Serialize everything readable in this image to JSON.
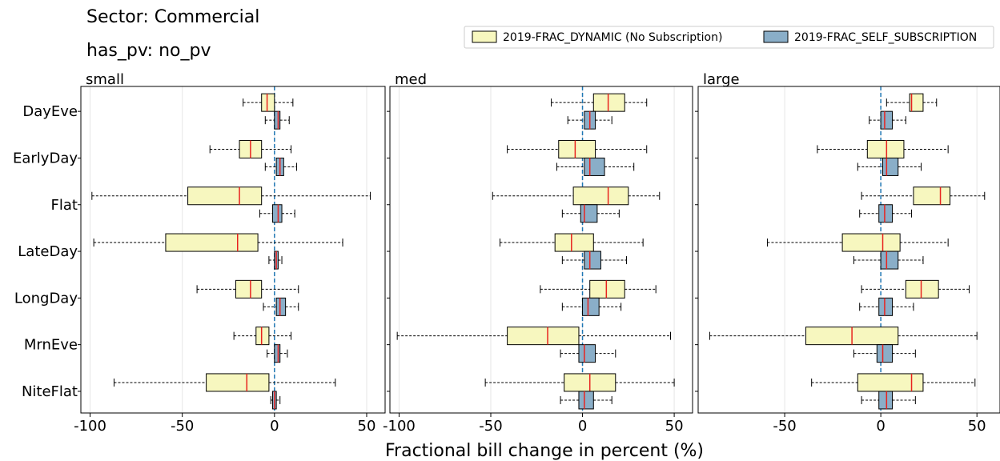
{
  "title_lines": [
    "Sector: Commercial",
    "has_pv: no_pv"
  ],
  "xlabel": "Fractional bill change in percent (%)",
  "legend": [
    {
      "label": "2019-FRAC_DYNAMIC (No Subscription)",
      "color": "#f7f7bf"
    },
    {
      "label": "2019-FRAC_SELF_SUBSCRIPTION",
      "color": "#8aaec8"
    }
  ],
  "colors": {
    "median": "#e8231f",
    "zero_line": "#1f77b4",
    "grid": "#e6e6e6",
    "edge": "#000000"
  },
  "categories": [
    "DayEve",
    "EarlyDay",
    "Flat",
    "LateDay",
    "LongDay",
    "MrnEve",
    "NiteFlat"
  ],
  "chart_data": [
    {
      "type": "boxplot",
      "title": "small",
      "xlim": [
        -105,
        60
      ],
      "xticks": [
        -100,
        -50,
        0,
        50
      ],
      "series": [
        {
          "name": "2019-FRAC_DYNAMIC (No Subscription)",
          "boxes": [
            {
              "category": "DayEve",
              "whislo": -17,
              "q1": -7,
              "med": -4,
              "q3": 0,
              "whishi": 10
            },
            {
              "category": "EarlyDay",
              "whislo": -35,
              "q1": -19,
              "med": -13,
              "q3": -7,
              "whishi": 9
            },
            {
              "category": "Flat",
              "whislo": -99,
              "q1": -47,
              "med": -19,
              "q3": -7,
              "whishi": 52
            },
            {
              "category": "LateDay",
              "whislo": -98,
              "q1": -59,
              "med": -20,
              "q3": -9,
              "whishi": 37
            },
            {
              "category": "LongDay",
              "whislo": -42,
              "q1": -21,
              "med": -13,
              "q3": -7,
              "whishi": 13
            },
            {
              "category": "MrnEve",
              "whislo": -22,
              "q1": -10,
              "med": -7,
              "q3": -3,
              "whishi": 9
            },
            {
              "category": "NiteFlat",
              "whislo": -87,
              "q1": -37,
              "med": -15,
              "q3": -3,
              "whishi": 33
            }
          ]
        },
        {
          "name": "2019-FRAC_SELF_SUBSCRIPTION",
          "boxes": [
            {
              "category": "DayEve",
              "whislo": -5,
              "q1": 0,
              "med": 2,
              "q3": 3,
              "whishi": 8
            },
            {
              "category": "EarlyDay",
              "whislo": -5,
              "q1": 1,
              "med": 3,
              "q3": 5,
              "whishi": 12
            },
            {
              "category": "Flat",
              "whislo": -8,
              "q1": -1,
              "med": 2,
              "q3": 4,
              "whishi": 11
            },
            {
              "category": "LateDay",
              "whislo": -3,
              "q1": 0,
              "med": 1,
              "q3": 2,
              "whishi": 4
            },
            {
              "category": "LongDay",
              "whislo": -6,
              "q1": 1,
              "med": 3,
              "q3": 6,
              "whishi": 13
            },
            {
              "category": "MrnEve",
              "whislo": -4,
              "q1": 0,
              "med": 2,
              "q3": 3,
              "whishi": 7
            },
            {
              "category": "NiteFlat",
              "whislo": -2,
              "q1": -1,
              "med": 0,
              "q3": 1,
              "whishi": 3
            }
          ]
        }
      ]
    },
    {
      "type": "boxplot",
      "title": "med",
      "xlim": [
        -105,
        60
      ],
      "xticks": [
        -100,
        -50,
        0,
        50
      ],
      "series": [
        {
          "name": "2019-FRAC_DYNAMIC (No Subscription)",
          "boxes": [
            {
              "category": "DayEve",
              "whislo": -17,
              "q1": 6,
              "med": 14,
              "q3": 23,
              "whishi": 35
            },
            {
              "category": "EarlyDay",
              "whislo": -41,
              "q1": -13,
              "med": -4,
              "q3": 7,
              "whishi": 35
            },
            {
              "category": "Flat",
              "whislo": -49,
              "q1": -5,
              "med": 14,
              "q3": 25,
              "whishi": 42
            },
            {
              "category": "LateDay",
              "whislo": -45,
              "q1": -15,
              "med": -6,
              "q3": 6,
              "whishi": 33
            },
            {
              "category": "LongDay",
              "whislo": -23,
              "q1": 4,
              "med": 13,
              "q3": 23,
              "whishi": 40
            },
            {
              "category": "MrnEve",
              "whislo": -101,
              "q1": -41,
              "med": -19,
              "q3": -2,
              "whishi": 48
            },
            {
              "category": "NiteFlat",
              "whislo": -53,
              "q1": -10,
              "med": 4,
              "q3": 18,
              "whishi": 50
            }
          ]
        },
        {
          "name": "2019-FRAC_SELF_SUBSCRIPTION",
          "boxes": [
            {
              "category": "DayEve",
              "whislo": -8,
              "q1": 1,
              "med": 4,
              "q3": 7,
              "whishi": 16
            },
            {
              "category": "EarlyDay",
              "whislo": -14,
              "q1": 1,
              "med": 4,
              "q3": 12,
              "whishi": 28
            },
            {
              "category": "Flat",
              "whislo": -11,
              "q1": -1,
              "med": 1,
              "q3": 8,
              "whishi": 20
            },
            {
              "category": "LateDay",
              "whislo": -11,
              "q1": 1,
              "med": 4,
              "q3": 10,
              "whishi": 24
            },
            {
              "category": "LongDay",
              "whislo": -11,
              "q1": 0,
              "med": 3,
              "q3": 9,
              "whishi": 21
            },
            {
              "category": "MrnEve",
              "whislo": -12,
              "q1": -2,
              "med": 1,
              "q3": 7,
              "whishi": 18
            },
            {
              "category": "NiteFlat",
              "whislo": -12,
              "q1": -2,
              "med": 1,
              "q3": 6,
              "whishi": 16
            }
          ]
        }
      ]
    },
    {
      "type": "boxplot",
      "title": "large",
      "xlim": [
        -95,
        62
      ],
      "xticks": [
        -50,
        0,
        50
      ],
      "series": [
        {
          "name": "2019-FRAC_DYNAMIC (No Subscription)",
          "boxes": [
            {
              "category": "DayEve",
              "whislo": 3,
              "q1": 15,
              "med": 16,
              "q3": 22,
              "whishi": 29
            },
            {
              "category": "EarlyDay",
              "whislo": -33,
              "q1": -7,
              "med": 3,
              "q3": 12,
              "whishi": 35
            },
            {
              "category": "Flat",
              "whislo": -10,
              "q1": 17,
              "med": 31,
              "q3": 36,
              "whishi": 54
            },
            {
              "category": "LateDay",
              "whislo": -59,
              "q1": -20,
              "med": 1,
              "q3": 10,
              "whishi": 35
            },
            {
              "category": "LongDay",
              "whislo": -10,
              "q1": 13,
              "med": 21,
              "q3": 30,
              "whishi": 46
            },
            {
              "category": "MrnEve",
              "whislo": -89,
              "q1": -39,
              "med": -15,
              "q3": 9,
              "whishi": 50
            },
            {
              "category": "NiteFlat",
              "whislo": -36,
              "q1": -12,
              "med": 16,
              "q3": 22,
              "whishi": 49
            }
          ]
        },
        {
          "name": "2019-FRAC_SELF_SUBSCRIPTION",
          "boxes": [
            {
              "category": "DayEve",
              "whislo": -6,
              "q1": 0,
              "med": 2,
              "q3": 6,
              "whishi": 13
            },
            {
              "category": "EarlyDay",
              "whislo": -12,
              "q1": 1,
              "med": 3,
              "q3": 9,
              "whishi": 21
            },
            {
              "category": "Flat",
              "whislo": -11,
              "q1": -1,
              "med": 2,
              "q3": 6,
              "whishi": 16
            },
            {
              "category": "LateDay",
              "whislo": -14,
              "q1": 0,
              "med": 3,
              "q3": 9,
              "whishi": 22
            },
            {
              "category": "LongDay",
              "whislo": -11,
              "q1": -1,
              "med": 2,
              "q3": 6,
              "whishi": 17
            },
            {
              "category": "MrnEve",
              "whislo": -14,
              "q1": -2,
              "med": 1,
              "q3": 6,
              "whishi": 18
            },
            {
              "category": "NiteFlat",
              "whislo": -10,
              "q1": -1,
              "med": 3,
              "q3": 6,
              "whishi": 18
            }
          ]
        }
      ]
    }
  ]
}
